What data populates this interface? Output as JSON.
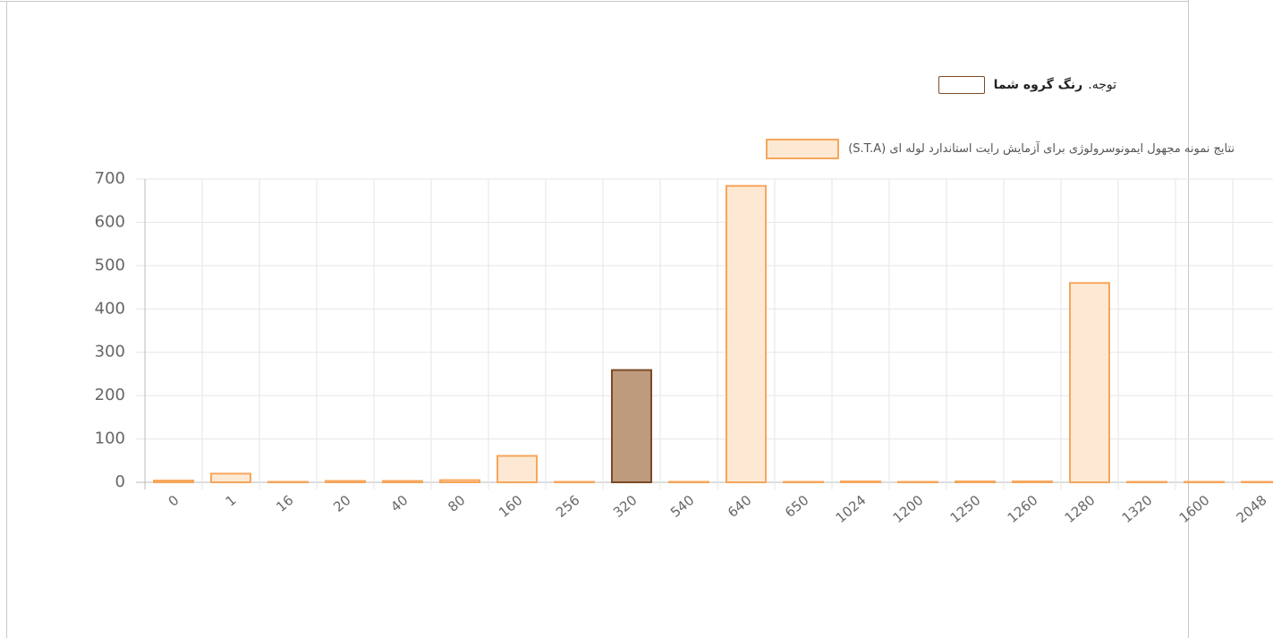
{
  "note": {
    "prefix": "توجه.",
    "text": "رنگ گروه شما",
    "color": "#7b4a25"
  },
  "chart_data": {
    "type": "bar",
    "categories": [
      "0",
      "1",
      "16",
      "20",
      "40",
      "80",
      "160",
      "256",
      "320",
      "540",
      "640",
      "650",
      "1024",
      "1200",
      "1250",
      "1260",
      "1280",
      "1320",
      "1600",
      "2048"
    ],
    "series": [
      {
        "name": "نتایج نمونه مجهول ایمونوسرولوژی برای آزمایش رایت استاندارد لوله ای (S.T.A)",
        "color": "#fde9d3",
        "border_color": "#f7a65b",
        "values": [
          4,
          20,
          1,
          3,
          3,
          5,
          61,
          1,
          259,
          1,
          684,
          1,
          2,
          1,
          2,
          2,
          460,
          1,
          1,
          1
        ],
        "colors": [
          "#fde9d3",
          "#fde9d3",
          "#fde9d3",
          "#fde9d3",
          "#fde9d3",
          "#fde9d3",
          "#fde9d3",
          "#fde9d3",
          "#bf9b7e",
          "#fde9d3",
          "#fde9d3",
          "#fde9d3",
          "#fde9d3",
          "#fde9d3",
          "#fde9d3",
          "#fde9d3",
          "#fde9d3",
          "#fde9d3",
          "#fde9d3",
          "#fde9d3"
        ],
        "border_colors": [
          "#f7a65b",
          "#f7a65b",
          "#f7a65b",
          "#f7a65b",
          "#f7a65b",
          "#f7a65b",
          "#f7a65b",
          "#f7a65b",
          "#7b4a25",
          "#f7a65b",
          "#f7a65b",
          "#f7a65b",
          "#f7a65b",
          "#f7a65b",
          "#f7a65b",
          "#f7a65b",
          "#f7a65b",
          "#f7a65b",
          "#f7a65b",
          "#f7a65b"
        ]
      }
    ],
    "ylim": [
      0,
      700
    ],
    "yticks": [
      0,
      100,
      200,
      300,
      400,
      500,
      600,
      700
    ],
    "grid": true
  }
}
